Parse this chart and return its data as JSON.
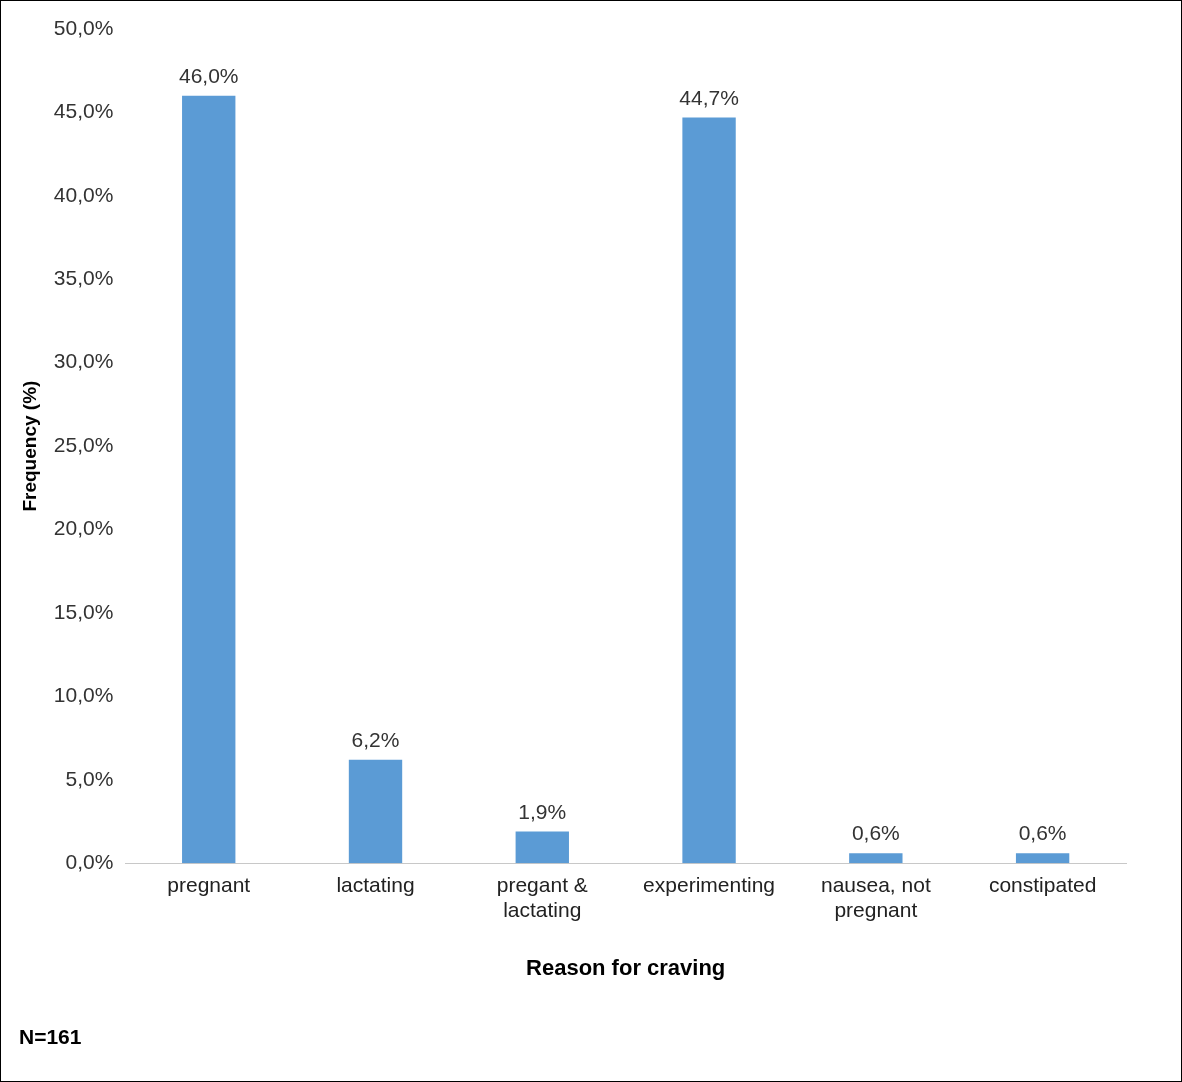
{
  "chart_data": {
    "type": "bar",
    "xlabel": "Reason for craving",
    "ylabel": "Frequency (%)",
    "categories": [
      "pregnant",
      "lactating",
      "pregant & lactating",
      "experimenting",
      "nausea, not pregnant",
      "constipated"
    ],
    "values": [
      46.0,
      6.2,
      1.9,
      44.7,
      0.6,
      0.6
    ],
    "value_labels": [
      "46,0%",
      "6,2%",
      "1,9%",
      "44,7%",
      "0,6%",
      "0,6%"
    ],
    "color": "#5b9bd5",
    "ylim": [
      0,
      50
    ],
    "yticks": [
      {
        "value": 0,
        "label": "0,0%"
      },
      {
        "value": 5,
        "label": "5,0%"
      },
      {
        "value": 10,
        "label": "10,0%"
      },
      {
        "value": 15,
        "label": "15,0%"
      },
      {
        "value": 20,
        "label": "20,0%"
      },
      {
        "value": 25,
        "label": "25,0%"
      },
      {
        "value": 30,
        "label": "30,0%"
      },
      {
        "value": 35,
        "label": "35,0%"
      },
      {
        "value": 40,
        "label": "40,0%"
      },
      {
        "value": 45,
        "label": "45,0%"
      },
      {
        "value": 50,
        "label": "50,0%"
      }
    ],
    "grid": false,
    "legend": false,
    "annotations": [
      "N=161"
    ]
  }
}
